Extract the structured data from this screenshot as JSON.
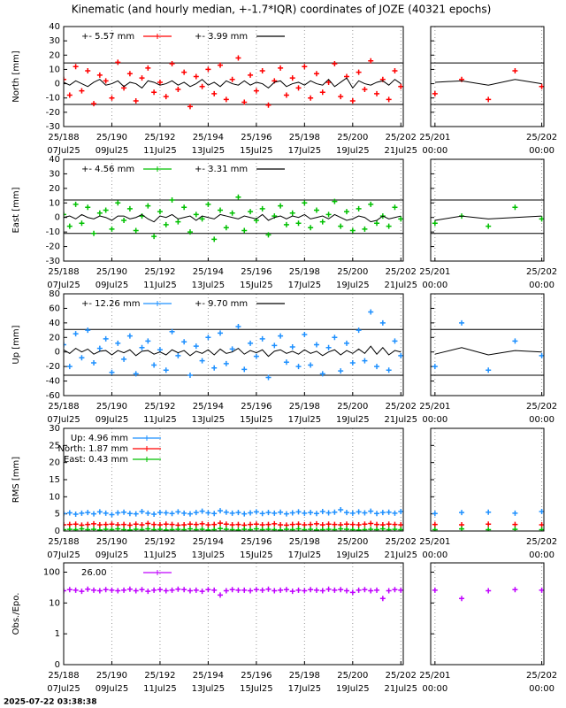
{
  "chart_data": {
    "title": "Kinematic (and hourly median, +-1.7*IQR) coordinates of JOZE (40321 epochs)",
    "timestamp": "2025-07-22 03:38:38",
    "x": [
      188,
      188.25,
      188.5,
      188.75,
      189,
      189.25,
      189.5,
      189.75,
      190,
      190.25,
      190.5,
      190.75,
      191,
      191.25,
      191.5,
      191.75,
      192,
      192.25,
      192.5,
      192.75,
      193,
      193.25,
      193.5,
      193.75,
      194,
      194.25,
      194.5,
      194.75,
      195,
      195.25,
      195.5,
      195.75,
      196,
      196.25,
      196.5,
      196.75,
      197,
      197.25,
      197.5,
      197.75,
      198,
      198.25,
      198.5,
      198.75,
      199,
      199.25,
      199.5,
      199.75,
      200,
      200.25,
      200.5,
      200.75,
      201,
      201.25,
      201.5,
      201.75,
      202
    ],
    "xlim": [
      188,
      202.1
    ],
    "xticks": [
      {
        "value": 188,
        "label": "25/188"
      },
      {
        "value": 190,
        "label": "25/190"
      },
      {
        "value": 192,
        "label": "25/192"
      },
      {
        "value": 194,
        "label": "25/194"
      },
      {
        "value": 196,
        "label": "25/196"
      },
      {
        "value": 198,
        "label": "25/198"
      },
      {
        "value": 200,
        "label": "25/200"
      },
      {
        "value": 202,
        "label": "25/202"
      }
    ],
    "xtick_dates": [
      "07Jul25",
      "09Jul25",
      "11Jul25",
      "13Jul25",
      "15Jul25",
      "17Jul25",
      "19Jul25",
      "21Jul25"
    ],
    "zoom": {
      "xlim": [
        200.96,
        202.02
      ],
      "xticks": [
        {
          "value": 201,
          "label": "25/201"
        },
        {
          "value": 202,
          "label": "25/202"
        }
      ],
      "xtick_dates": [
        "00:00",
        "00:00"
      ]
    },
    "grid": true,
    "panels": [
      {
        "type": "scatter",
        "y_label": "North [mm]",
        "ylim": [
          -30,
          40
        ],
        "yticks": [
          40,
          30,
          20,
          10,
          0,
          -10,
          -20,
          -30
        ],
        "hlines": [
          14.5,
          -14.5
        ],
        "series": [
          {
            "name": "+-   5.57 mm",
            "color": "#ff0000",
            "style": "points",
            "values": [
              3,
              -8,
              12,
              -5,
              9,
              -14,
              6,
              2,
              -10,
              15,
              -3,
              7,
              -12,
              4,
              11,
              -6,
              1,
              -9,
              14,
              -4,
              8,
              -16,
              5,
              -2,
              10,
              -7,
              13,
              -11,
              3,
              18,
              -13,
              6,
              -5,
              9,
              -15,
              2,
              11,
              -8,
              4,
              -3,
              12,
              -10,
              7,
              -6,
              1,
              14,
              -9,
              5,
              -12,
              8,
              -4,
              16,
              -7,
              3,
              -11,
              9,
              -2
            ]
          },
          {
            "name": "+-   3.99 mm",
            "color": "#000000",
            "style": "line",
            "values": [
              1,
              -1,
              2,
              0,
              -2,
              1,
              3,
              -1,
              0,
              2,
              -2,
              1,
              0,
              -3,
              2,
              1,
              -1,
              0,
              2,
              -1,
              1,
              -2,
              0,
              3,
              -1,
              1,
              -2,
              2,
              0,
              -1,
              2,
              -1,
              1,
              0,
              -3,
              1,
              2,
              -2,
              0,
              1,
              -1,
              2,
              0,
              -1,
              3,
              -2,
              1,
              4,
              -3,
              2,
              0,
              -1,
              1,
              2,
              -1,
              3,
              0
            ]
          }
        ]
      },
      {
        "type": "scatter",
        "y_label": "East [mm]",
        "ylim": [
          -30,
          40
        ],
        "yticks": [
          40,
          30,
          20,
          10,
          0,
          -10,
          -20,
          -30
        ],
        "hlines": [
          12,
          -11
        ],
        "series": [
          {
            "name": "+-   4.56 mm",
            "color": "#00c000",
            "style": "points",
            "values": [
              2,
              -6,
              9,
              -4,
              7,
              -11,
              3,
              5,
              -8,
              10,
              -2,
              6,
              -9,
              1,
              8,
              -13,
              4,
              -5,
              12,
              -3,
              7,
              -10,
              2,
              -1,
              9,
              -15,
              5,
              -7,
              3,
              14,
              -9,
              4,
              -2,
              6,
              -12,
              1,
              8,
              -5,
              3,
              -4,
              10,
              -7,
              5,
              -3,
              2,
              11,
              -6,
              4,
              -9,
              6,
              -8,
              9,
              -4,
              1,
              -6,
              7,
              -1
            ]
          },
          {
            "name": "+-   3.31 mm",
            "color": "#000000",
            "style": "line",
            "values": [
              0,
              1,
              -1,
              2,
              0,
              -1,
              1,
              0,
              -2,
              1,
              1,
              -1,
              0,
              2,
              -1,
              -3,
              1,
              0,
              2,
              -1,
              0,
              1,
              -2,
              1,
              0,
              -1,
              2,
              1,
              0,
              -1,
              1,
              0,
              -1,
              2,
              -2,
              0,
              1,
              -1,
              1,
              0,
              2,
              -1,
              0,
              1,
              -1,
              2,
              0,
              -2,
              -1,
              1,
              0,
              -3,
              -2,
              1,
              -1,
              0,
              1
            ]
          }
        ]
      },
      {
        "type": "scatter",
        "y_label": "Up [mm]",
        "ylim": [
          -60,
          80
        ],
        "yticks": [
          80,
          60,
          40,
          20,
          0,
          -20,
          -40,
          -60
        ],
        "hlines": [
          31,
          -32
        ],
        "series": [
          {
            "name": "+-   12.26 mm",
            "color": "#1e90ff",
            "style": "points",
            "values": [
              10,
              -20,
              25,
              -8,
              30,
              -15,
              5,
              18,
              -28,
              12,
              -10,
              22,
              -30,
              6,
              15,
              -18,
              3,
              -25,
              28,
              -5,
              14,
              -32,
              8,
              -12,
              20,
              -22,
              26,
              -16,
              4,
              35,
              -24,
              12,
              -6,
              18,
              -35,
              9,
              22,
              -14,
              7,
              -20,
              24,
              -18,
              10,
              -30,
              6,
              20,
              -26,
              12,
              -15,
              30,
              -12,
              55,
              -20,
              40,
              -25,
              15,
              -5
            ]
          },
          {
            "name": "+-   9.70 mm",
            "color": "#000000",
            "style": "line",
            "values": [
              3,
              -2,
              5,
              0,
              4,
              -3,
              1,
              2,
              -4,
              2,
              -1,
              3,
              -5,
              1,
              2,
              -3,
              0,
              -4,
              3,
              -1,
              2,
              -5,
              1,
              -2,
              3,
              -4,
              4,
              -2,
              0,
              5,
              -3,
              2,
              -1,
              3,
              -6,
              1,
              3,
              -2,
              1,
              -3,
              3,
              -2,
              1,
              -5,
              0,
              3,
              -4,
              2,
              -2,
              4,
              -2,
              8,
              -3,
              6,
              -4,
              2,
              0
            ]
          }
        ]
      },
      {
        "type": "scatter",
        "y_label": "RMS [mm]",
        "ylim": [
          0,
          30
        ],
        "yticks": [
          30,
          25,
          20,
          15,
          10,
          5,
          0
        ],
        "legend": "column",
        "series": [
          {
            "name": "Up:   4.96 mm",
            "color": "#1e90ff",
            "style": "points",
            "values": [
              5.1,
              5.3,
              4.9,
              5.2,
              5.4,
              5.0,
              5.6,
              5.2,
              4.8,
              5.3,
              5.5,
              5.1,
              5.0,
              5.7,
              5.2,
              4.9,
              5.4,
              5.3,
              5.1,
              5.6,
              5.2,
              5.0,
              5.4,
              5.8,
              5.3,
              5.1,
              5.9,
              5.5,
              5.2,
              5.4,
              5.0,
              5.3,
              5.6,
              5.1,
              5.4,
              5.2,
              5.5,
              5.0,
              5.3,
              5.6,
              5.2,
              5.4,
              5.1,
              5.7,
              5.3,
              5.5,
              6.2,
              5.4,
              5.2,
              5.6,
              5.3,
              5.8,
              5.1,
              5.4,
              5.5,
              5.2,
              5.7
            ]
          },
          {
            "name": "North:   1.87 mm",
            "color": "#ff0000",
            "style": "points",
            "values": [
              1.8,
              1.9,
              2.0,
              1.7,
              1.9,
              2.1,
              1.8,
              1.9,
              2.0,
              1.8,
              1.9,
              1.7,
              2.0,
              1.8,
              2.2,
              1.9,
              1.8,
              2.0,
              1.9,
              1.7,
              1.8,
              2.0,
              1.9,
              2.1,
              1.8,
              1.9,
              2.3,
              2.0,
              1.8,
              1.9,
              1.7,
              1.9,
              2.0,
              1.8,
              1.9,
              2.1,
              1.8,
              1.7,
              1.9,
              2.0,
              1.8,
              1.9,
              2.1,
              1.8,
              2.0,
              1.9,
              1.8,
              2.0,
              1.9,
              1.8,
              2.0,
              2.2,
              1.9,
              1.8,
              2.0,
              1.9,
              1.8
            ]
          },
          {
            "name": "East:   0.43 mm",
            "color": "#00c000",
            "style": "points",
            "values": [
              0.4,
              0.5,
              0.4,
              0.6,
              0.4,
              0.5,
              0.3,
              0.5,
              0.4,
              0.6,
              0.4,
              0.3,
              0.5,
              0.4,
              0.6,
              0.4,
              0.5,
              0.3,
              0.4,
              0.5,
              0.4,
              0.6,
              0.4,
              0.5,
              0.3,
              0.4,
              0.7,
              0.5,
              0.4,
              0.3,
              0.5,
              0.4,
              0.6,
              0.4,
              0.5,
              0.4,
              0.3,
              0.5,
              0.4,
              0.6,
              0.4,
              0.5,
              0.3,
              0.4,
              0.5,
              0.4,
              0.6,
              0.5,
              0.4,
              0.3,
              0.4,
              0.5,
              0.4,
              0.6,
              0.4,
              0.5,
              0.4
            ]
          }
        ]
      },
      {
        "type": "scatter",
        "y_label": "Obs./Epo.",
        "log_y": true,
        "ylim": [
          0.1,
          200
        ],
        "yticks": [
          {
            "value": 0.1,
            "label": "0"
          },
          1,
          10,
          100
        ],
        "series": [
          {
            "name": "26.00",
            "color": "#c000ff",
            "style": "points",
            "values": [
              25,
              27,
              26,
              24,
              28,
              26,
              25,
              27,
              26,
              25,
              26,
              28,
              25,
              27,
              24,
              26,
              27,
              25,
              26,
              28,
              27,
              25,
              26,
              24,
              27,
              26,
              18,
              25,
              27,
              26,
              26,
              25,
              27,
              26,
              28,
              25,
              26,
              27,
              24,
              26,
              25,
              27,
              26,
              25,
              28,
              26,
              27,
              25,
              22,
              26,
              27,
              25,
              26,
              14,
              25,
              27,
              26
            ]
          }
        ]
      }
    ]
  }
}
